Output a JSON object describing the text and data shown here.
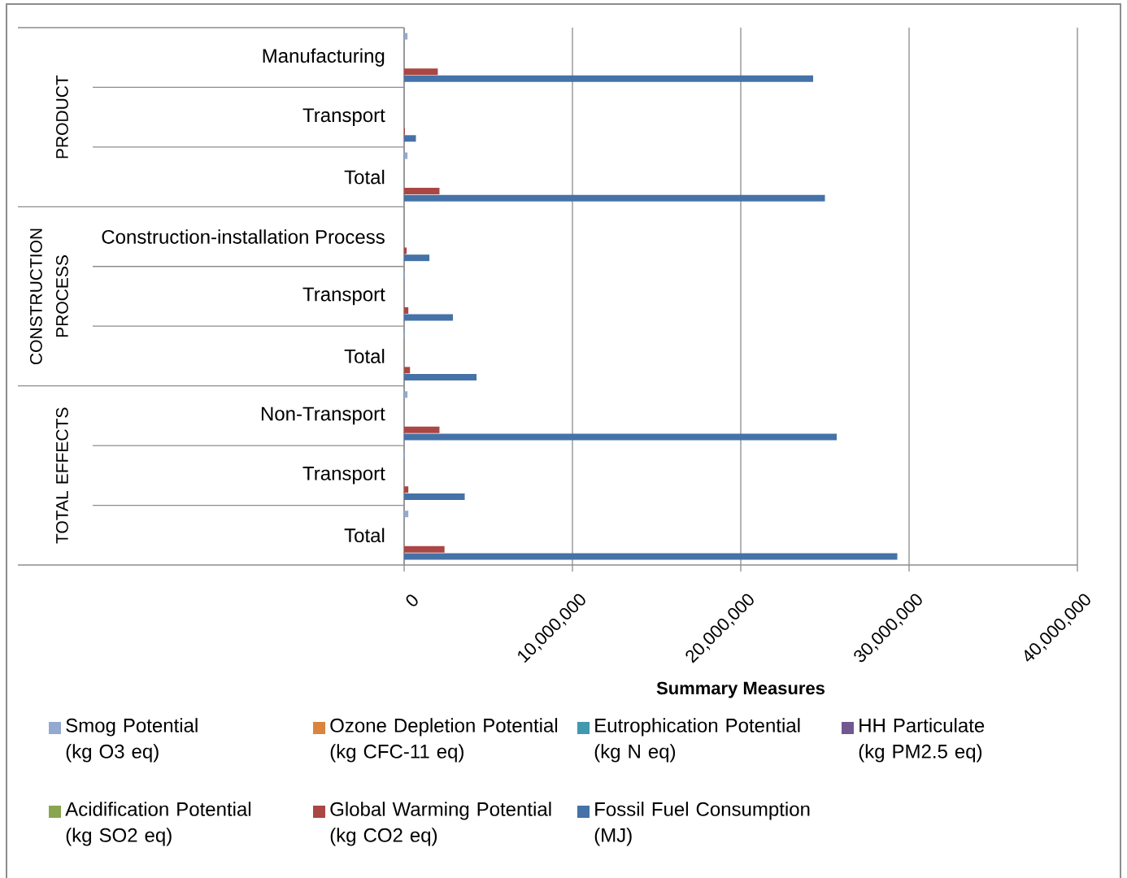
{
  "chart_data": {
    "type": "bar",
    "orientation": "horizontal",
    "xlabel": "Summary Measures",
    "categories": [
      "Manufacturing",
      "Transport",
      "Total",
      "Construction-installation Process",
      "Transport",
      "Total",
      "Non-Transport",
      "Transport",
      "Total"
    ],
    "annotations": [
      "PRODUCT",
      "CONSTRUCTION PROCESS",
      "TOTAL EFFECTS"
    ],
    "series": [
      {
        "name": "Smog Potential (kg O3 eq)",
        "color": "#93a9cf",
        "values": [
          200000,
          0,
          200000,
          0,
          50000,
          50000,
          200000,
          50000,
          250000
        ]
      },
      {
        "name": "Ozone Depletion Potential (kg CFC-11 eq)",
        "color": "#db843d",
        "values": [
          0,
          0,
          0,
          0,
          0,
          0,
          0,
          0,
          0
        ]
      },
      {
        "name": "Eutrophication Potential (kg N eq)",
        "color": "#4198af",
        "values": [
          0,
          0,
          0,
          0,
          0,
          0,
          0,
          0,
          0
        ]
      },
      {
        "name": "HH Particulate (kg PM2.5 eq)",
        "color": "#71588f",
        "values": [
          0,
          0,
          0,
          0,
          0,
          0,
          0,
          0,
          0
        ]
      },
      {
        "name": "Acidification Potential (kg SO2 eq)",
        "color": "#89a54e",
        "values": [
          0,
          0,
          0,
          0,
          0,
          0,
          0,
          0,
          0
        ]
      },
      {
        "name": "Global Warming Potential (kg CO2 eq)",
        "color": "#aa4643",
        "values": [
          2000000,
          50000,
          2100000,
          150000,
          250000,
          350000,
          2100000,
          250000,
          2400000
        ]
      },
      {
        "name": "Fossil Fuel Consumption (MJ)",
        "color": "#4572a7",
        "values": [
          24300000,
          700000,
          25000000,
          1500000,
          2900000,
          4300000,
          25700000,
          3600000,
          29300000
        ]
      }
    ],
    "xlim": [
      0,
      40000000
    ],
    "xticks": [
      0,
      {
        "value": 10000000,
        "label": "10,000,000"
      },
      {
        "value": 20000000,
        "label": "20,000,000"
      },
      {
        "value": 30000000,
        "label": "30,000,000"
      },
      {
        "value": 40000000,
        "label": "40,000,000"
      }
    ],
    "grid": "x",
    "legend": "bottom"
  }
}
